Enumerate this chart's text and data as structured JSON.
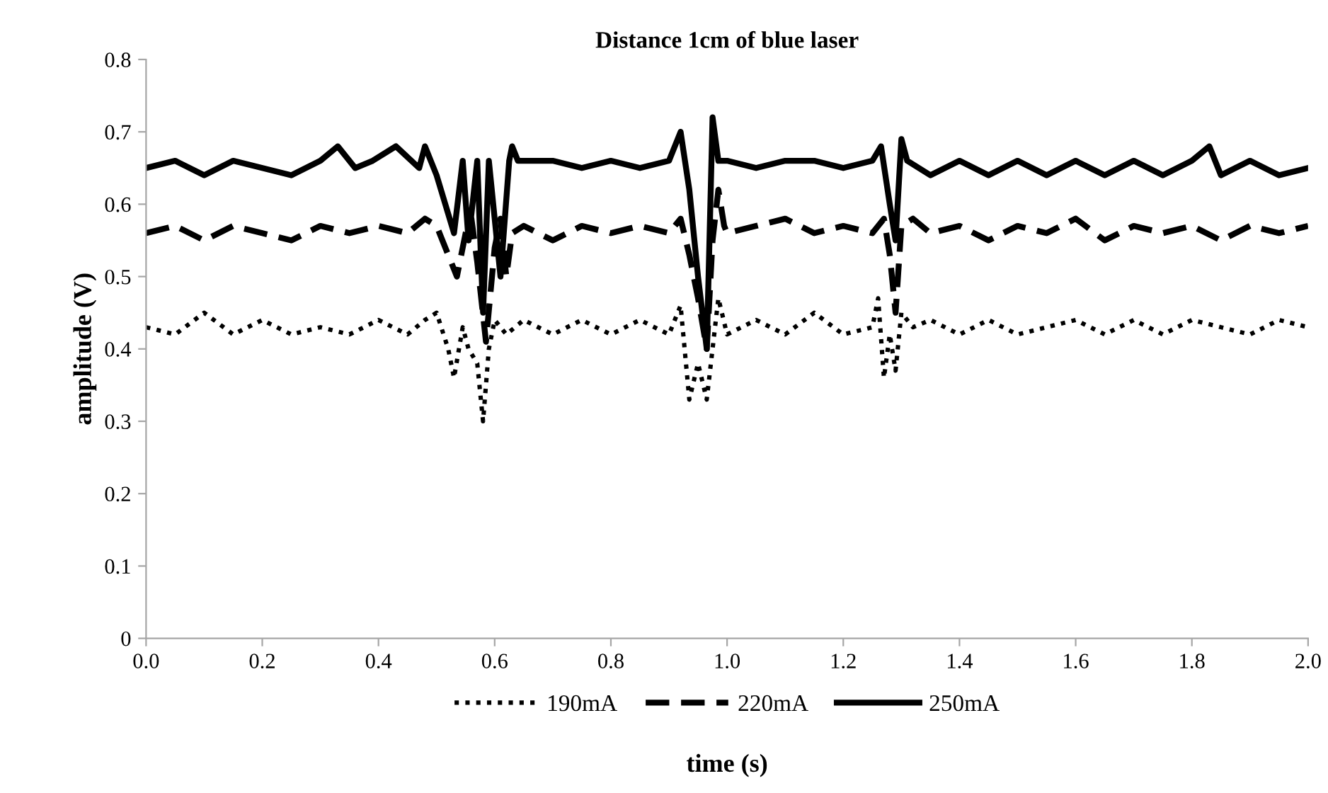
{
  "chart_data": {
    "type": "line",
    "title": "Distance 1cm of blue laser",
    "xlabel": "time (s)",
    "ylabel": "amplitude (V)",
    "xlim": [
      0,
      2
    ],
    "xticks": [
      {
        "value": 0,
        "label": "0.0"
      },
      0.2,
      0.4,
      0.6,
      0.8,
      {
        "value": 1,
        "label": "1.0"
      },
      1.2,
      1.4,
      1.6,
      1.8,
      {
        "value": 2,
        "label": "2.0"
      }
    ],
    "ylim": [
      0,
      0.8
    ],
    "yticks": [
      0,
      0.1,
      0.2,
      0.3,
      0.4,
      0.5,
      0.6,
      0.7,
      0.8
    ],
    "grid": false,
    "legend": "bottom",
    "marker": "none",
    "series": [
      {
        "name": "190mA",
        "color": "#000000",
        "line_style": "dotted",
        "x": [
          0,
          0.05,
          0.1,
          0.15,
          0.2,
          0.25,
          0.3,
          0.35,
          0.4,
          0.45,
          0.48,
          0.5,
          0.52,
          0.53,
          0.545,
          0.555,
          0.57,
          0.58,
          0.59,
          0.6,
          0.62,
          0.65,
          0.7,
          0.75,
          0.8,
          0.85,
          0.9,
          0.92,
          0.935,
          0.95,
          0.965,
          0.975,
          0.985,
          1.0,
          1.05,
          1.1,
          1.15,
          1.2,
          1.25,
          1.26,
          1.27,
          1.28,
          1.29,
          1.3,
          1.32,
          1.35,
          1.4,
          1.45,
          1.5,
          1.55,
          1.6,
          1.65,
          1.7,
          1.75,
          1.8,
          1.85,
          1.9,
          1.95,
          2.0
        ],
        "values": [
          0.43,
          0.42,
          0.45,
          0.42,
          0.44,
          0.42,
          0.43,
          0.42,
          0.44,
          0.42,
          0.44,
          0.45,
          0.4,
          0.36,
          0.43,
          0.4,
          0.38,
          0.3,
          0.4,
          0.44,
          0.42,
          0.44,
          0.42,
          0.44,
          0.42,
          0.44,
          0.42,
          0.46,
          0.33,
          0.38,
          0.33,
          0.4,
          0.47,
          0.42,
          0.44,
          0.42,
          0.45,
          0.42,
          0.43,
          0.47,
          0.36,
          0.42,
          0.37,
          0.45,
          0.43,
          0.44,
          0.42,
          0.44,
          0.42,
          0.43,
          0.44,
          0.42,
          0.44,
          0.42,
          0.44,
          0.43,
          0.42,
          0.44,
          0.43
        ]
      },
      {
        "name": "220mA",
        "color": "#000000",
        "line_style": "dashed",
        "x": [
          0,
          0.05,
          0.1,
          0.15,
          0.2,
          0.25,
          0.3,
          0.35,
          0.4,
          0.45,
          0.48,
          0.5,
          0.52,
          0.535,
          0.55,
          0.56,
          0.57,
          0.585,
          0.6,
          0.61,
          0.62,
          0.63,
          0.65,
          0.7,
          0.75,
          0.8,
          0.85,
          0.9,
          0.92,
          0.935,
          0.95,
          0.965,
          0.975,
          0.985,
          0.995,
          1.0,
          1.05,
          1.1,
          1.15,
          1.2,
          1.25,
          1.27,
          1.28,
          1.29,
          1.3,
          1.32,
          1.35,
          1.4,
          1.45,
          1.5,
          1.55,
          1.6,
          1.65,
          1.7,
          1.75,
          1.8,
          1.85,
          1.9,
          1.95,
          2.0
        ],
        "values": [
          0.56,
          0.57,
          0.55,
          0.57,
          0.56,
          0.55,
          0.57,
          0.56,
          0.57,
          0.56,
          0.58,
          0.57,
          0.53,
          0.5,
          0.56,
          0.58,
          0.52,
          0.41,
          0.54,
          0.58,
          0.5,
          0.56,
          0.57,
          0.55,
          0.57,
          0.56,
          0.57,
          0.56,
          0.58,
          0.53,
          0.47,
          0.4,
          0.55,
          0.62,
          0.57,
          0.56,
          0.57,
          0.58,
          0.56,
          0.57,
          0.56,
          0.58,
          0.53,
          0.45,
          0.57,
          0.58,
          0.56,
          0.57,
          0.55,
          0.57,
          0.56,
          0.58,
          0.55,
          0.57,
          0.56,
          0.57,
          0.55,
          0.57,
          0.56,
          0.57
        ]
      },
      {
        "name": "250mA",
        "color": "#000000",
        "line_style": "solid",
        "x": [
          0,
          0.05,
          0.1,
          0.15,
          0.2,
          0.25,
          0.3,
          0.33,
          0.36,
          0.39,
          0.43,
          0.47,
          0.48,
          0.5,
          0.53,
          0.545,
          0.555,
          0.57,
          0.58,
          0.59,
          0.6,
          0.61,
          0.625,
          0.63,
          0.64,
          0.66,
          0.7,
          0.75,
          0.8,
          0.85,
          0.9,
          0.92,
          0.935,
          0.95,
          0.965,
          0.975,
          0.985,
          1.0,
          1.05,
          1.1,
          1.15,
          1.2,
          1.25,
          1.265,
          1.28,
          1.29,
          1.3,
          1.31,
          1.35,
          1.4,
          1.45,
          1.5,
          1.55,
          1.6,
          1.65,
          1.7,
          1.75,
          1.8,
          1.83,
          1.85,
          1.9,
          1.95,
          2.0
        ],
        "values": [
          0.65,
          0.66,
          0.64,
          0.66,
          0.65,
          0.64,
          0.66,
          0.68,
          0.65,
          0.66,
          0.68,
          0.65,
          0.68,
          0.64,
          0.56,
          0.66,
          0.55,
          0.66,
          0.45,
          0.66,
          0.58,
          0.5,
          0.66,
          0.68,
          0.66,
          0.66,
          0.66,
          0.65,
          0.66,
          0.65,
          0.66,
          0.7,
          0.62,
          0.5,
          0.4,
          0.72,
          0.66,
          0.66,
          0.65,
          0.66,
          0.66,
          0.65,
          0.66,
          0.68,
          0.6,
          0.55,
          0.69,
          0.66,
          0.64,
          0.66,
          0.64,
          0.66,
          0.64,
          0.66,
          0.64,
          0.66,
          0.64,
          0.66,
          0.68,
          0.64,
          0.66,
          0.64,
          0.65
        ]
      }
    ]
  }
}
